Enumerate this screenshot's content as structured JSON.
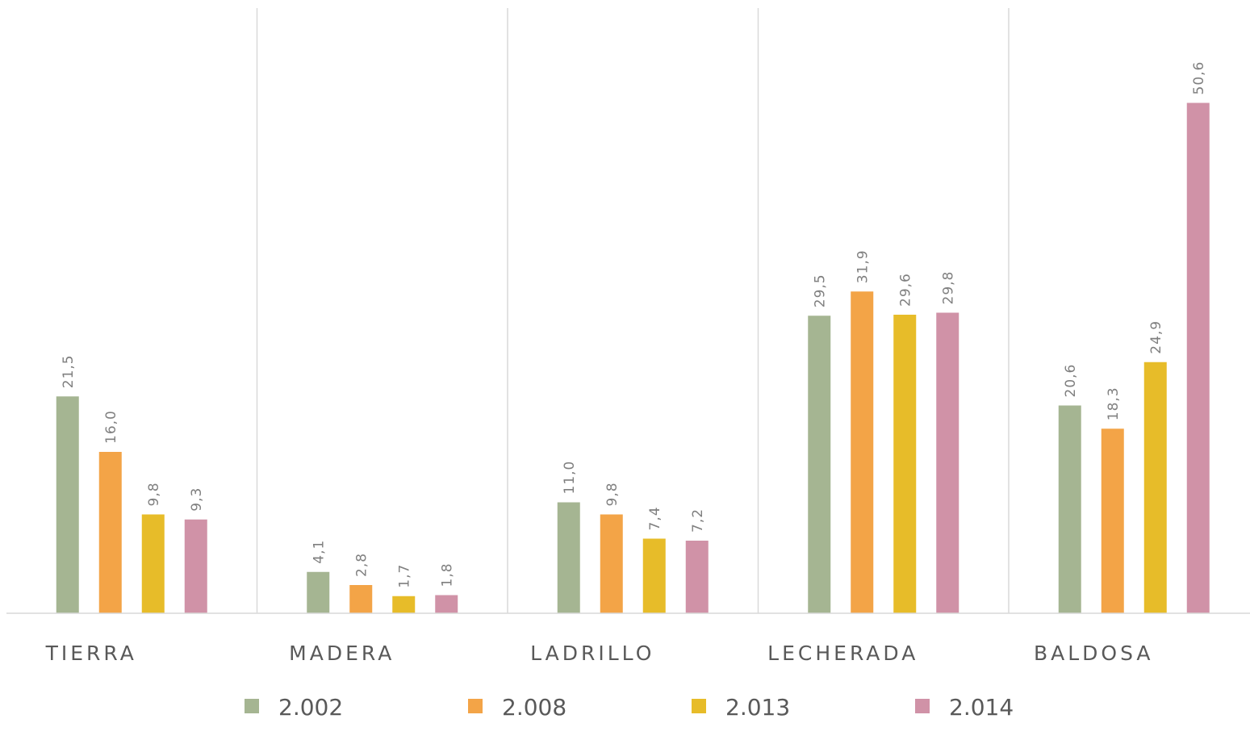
{
  "chart_data": {
    "type": "bar",
    "categories": [
      "TIERRA",
      "MADERA",
      "LADRILLO",
      "LECHERADA",
      "BALDOSA"
    ],
    "series": [
      {
        "name": "2.002",
        "color": "#a5b592",
        "values": [
          21.5,
          4.1,
          11.0,
          29.5,
          20.6
        ],
        "value_labels": [
          "21,5",
          "4,1",
          "11,0",
          "29,5",
          "20,6"
        ]
      },
      {
        "name": "2.008",
        "color": "#f3a447",
        "values": [
          16.0,
          2.8,
          9.8,
          31.9,
          18.3
        ],
        "value_labels": [
          "16,0",
          "2,8",
          "9,8",
          "31,9",
          "18,3"
        ]
      },
      {
        "name": "2.013",
        "color": "#e7bc29",
        "values": [
          9.8,
          1.7,
          7.4,
          29.6,
          24.9
        ],
        "value_labels": [
          "9,8",
          "1,7",
          "7,4",
          "29,6",
          "24,9"
        ]
      },
      {
        "name": "2.014",
        "color": "#d092a7",
        "values": [
          9.3,
          1.8,
          7.2,
          29.8,
          50.6
        ],
        "value_labels": [
          "9,3",
          "1,8",
          "7,2",
          "29,8",
          "50,6"
        ]
      }
    ],
    "ylim": [
      0,
      60
    ],
    "legend": "bottom"
  }
}
